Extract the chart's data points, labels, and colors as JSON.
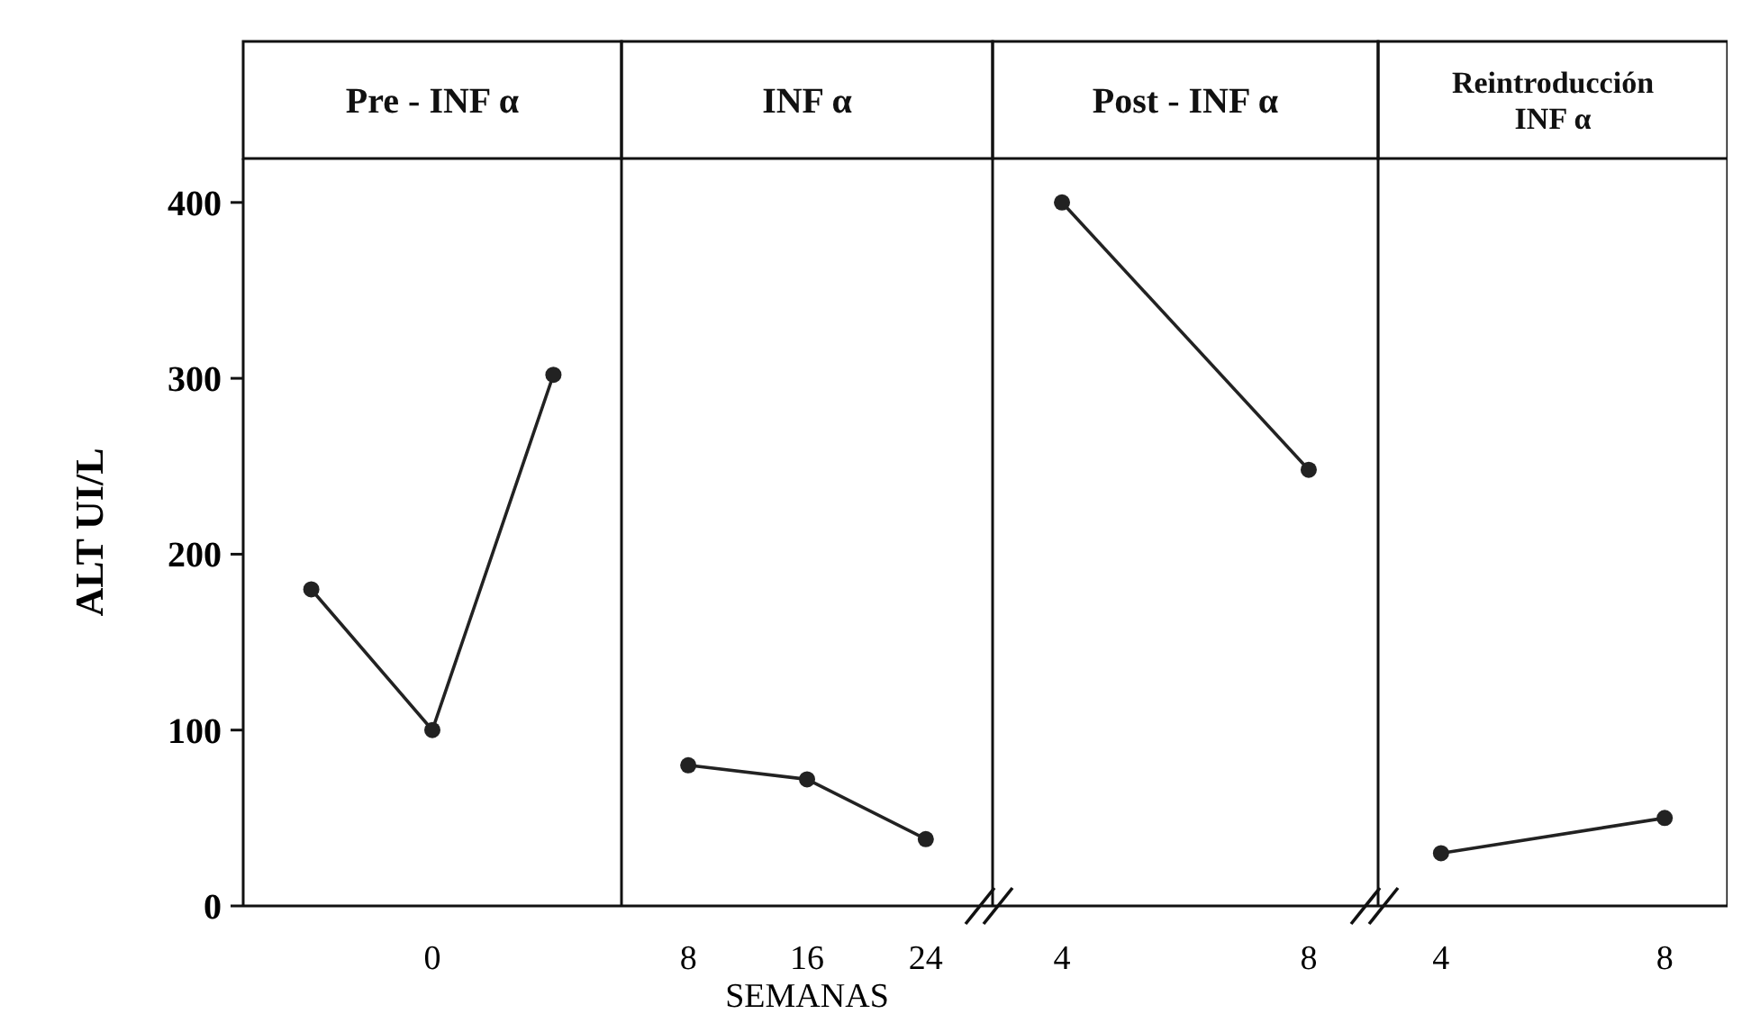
{
  "chart_data": [
    {
      "type": "line",
      "title": "Pre - INF α",
      "ylabel": "ALT UI/L",
      "categories": [
        null,
        "0",
        null
      ],
      "values": [
        180,
        100,
        302
      ],
      "color": "#222222",
      "marker": "circle",
      "ylim": [
        0,
        425
      ],
      "yticks": [
        0,
        100,
        200,
        300,
        400
      ]
    },
    {
      "type": "line",
      "title": "INF α",
      "xlabel": "SEMANAS",
      "categories": [
        "8",
        "16",
        "24"
      ],
      "values": [
        80,
        72,
        38
      ],
      "color": "#222222",
      "marker": "circle",
      "ylim": [
        0,
        425
      ],
      "tick_labels": "x"
    },
    {
      "type": "line",
      "title": "Post - INF α",
      "categories": [
        "4",
        "8"
      ],
      "values": [
        400,
        248
      ],
      "color": "#222222",
      "marker": "circle",
      "ylim": [
        0,
        425
      ],
      "tick_labels": "x"
    },
    {
      "type": "line",
      "title": "Reintroducción INF α",
      "categories": [
        "4",
        "8"
      ],
      "values": [
        30,
        50
      ],
      "color": "#222222",
      "marker": "circle",
      "ylim": [
        0,
        425
      ],
      "tick_labels": "x"
    }
  ]
}
